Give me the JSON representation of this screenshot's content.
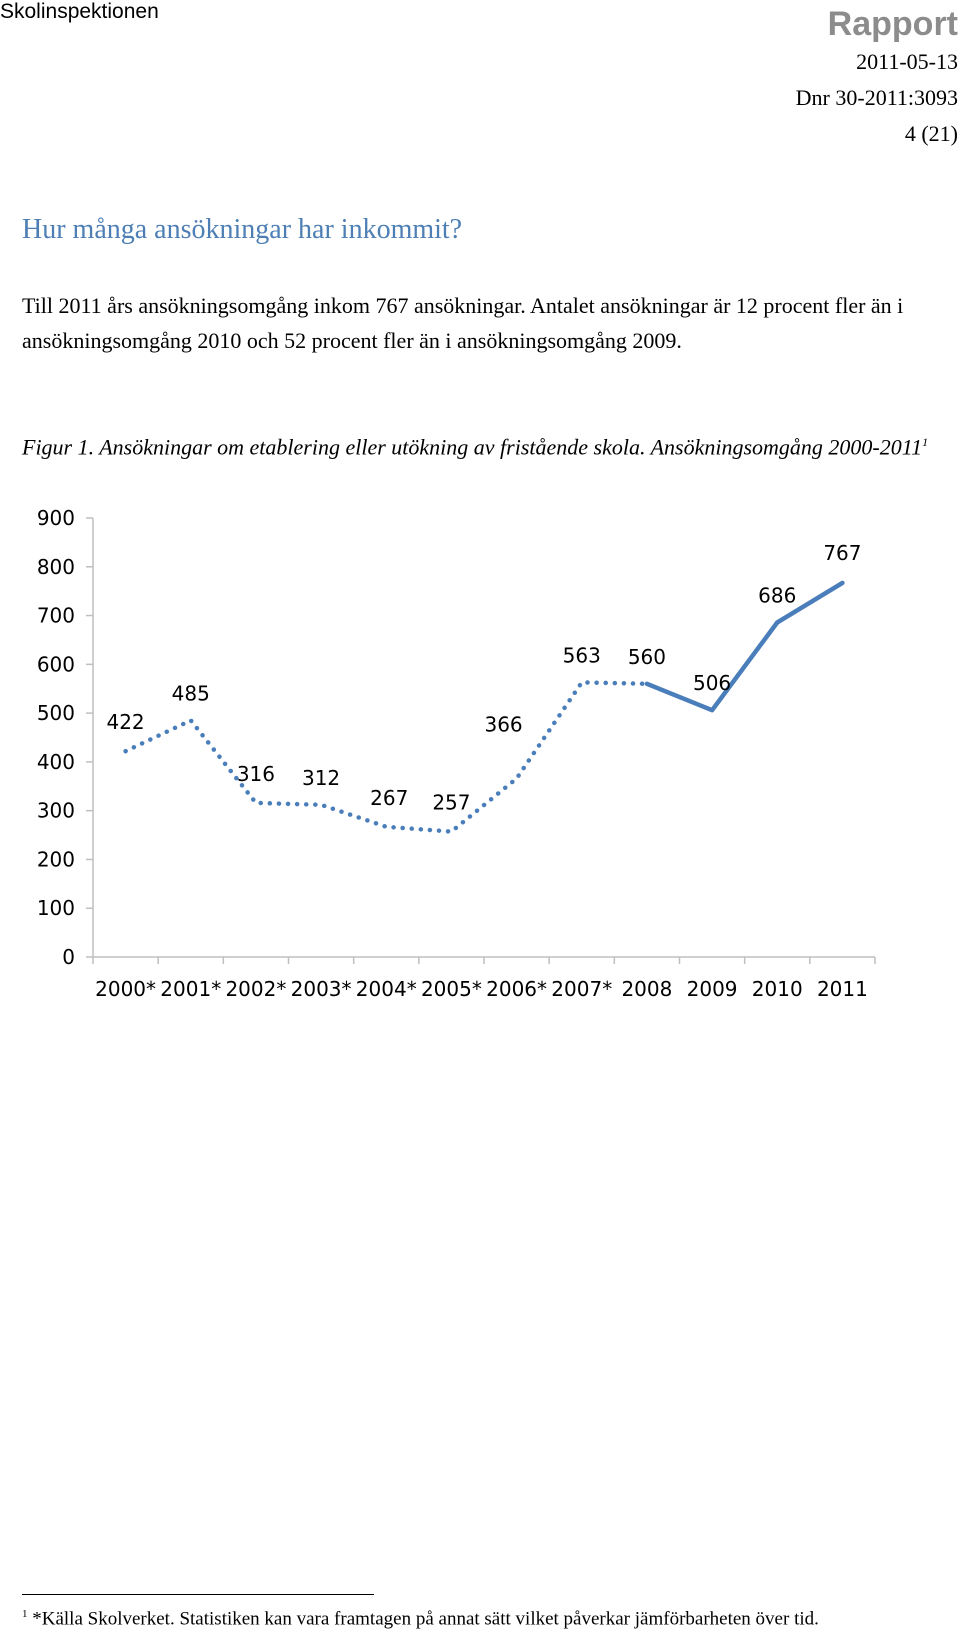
{
  "header": {
    "organization": "Skolinspektionen",
    "report_label": "Rapport",
    "date": "2011-05-13",
    "dnr": "Dnr 30-2011:3093",
    "page": "4 (21)"
  },
  "section": {
    "heading": "Hur många ansökningar har inkommit?",
    "paragraph": "Till 2011 års ansökningsomgång inkom 767 ansökningar. Antalet ansökningar är 12 procent fler än i ansökningsomgång 2010 och 52 procent fler än i ansökningsomgång 2009."
  },
  "figure": {
    "caption": "Figur 1. Ansökningar om etablering eller utökning av fristående skola. Ansökningsomgång 2000-2011",
    "caption_sup": "1"
  },
  "footnote": {
    "marker": "1",
    "text": "*Källa Skolverket. Statistiken kan vara framtagen på annat sätt vilket påverkar jämförbarheten över tid."
  },
  "chart_data": {
    "type": "line",
    "categories": [
      "2000*",
      "2001*",
      "2002*",
      "2003*",
      "2004*",
      "2005*",
      "2006*",
      "2007*",
      "2008",
      "2009",
      "2010",
      "2011"
    ],
    "values": [
      422,
      485,
      316,
      312,
      267,
      257,
      366,
      563,
      560,
      506,
      686,
      767
    ],
    "ylim": [
      0,
      900
    ],
    "yticks": [
      0,
      100,
      200,
      300,
      400,
      500,
      600,
      700,
      800,
      900
    ],
    "series_style": "dotted through 2008, solid from 2008",
    "color": "#4a7ebb",
    "grid": false,
    "legend": "none"
  }
}
